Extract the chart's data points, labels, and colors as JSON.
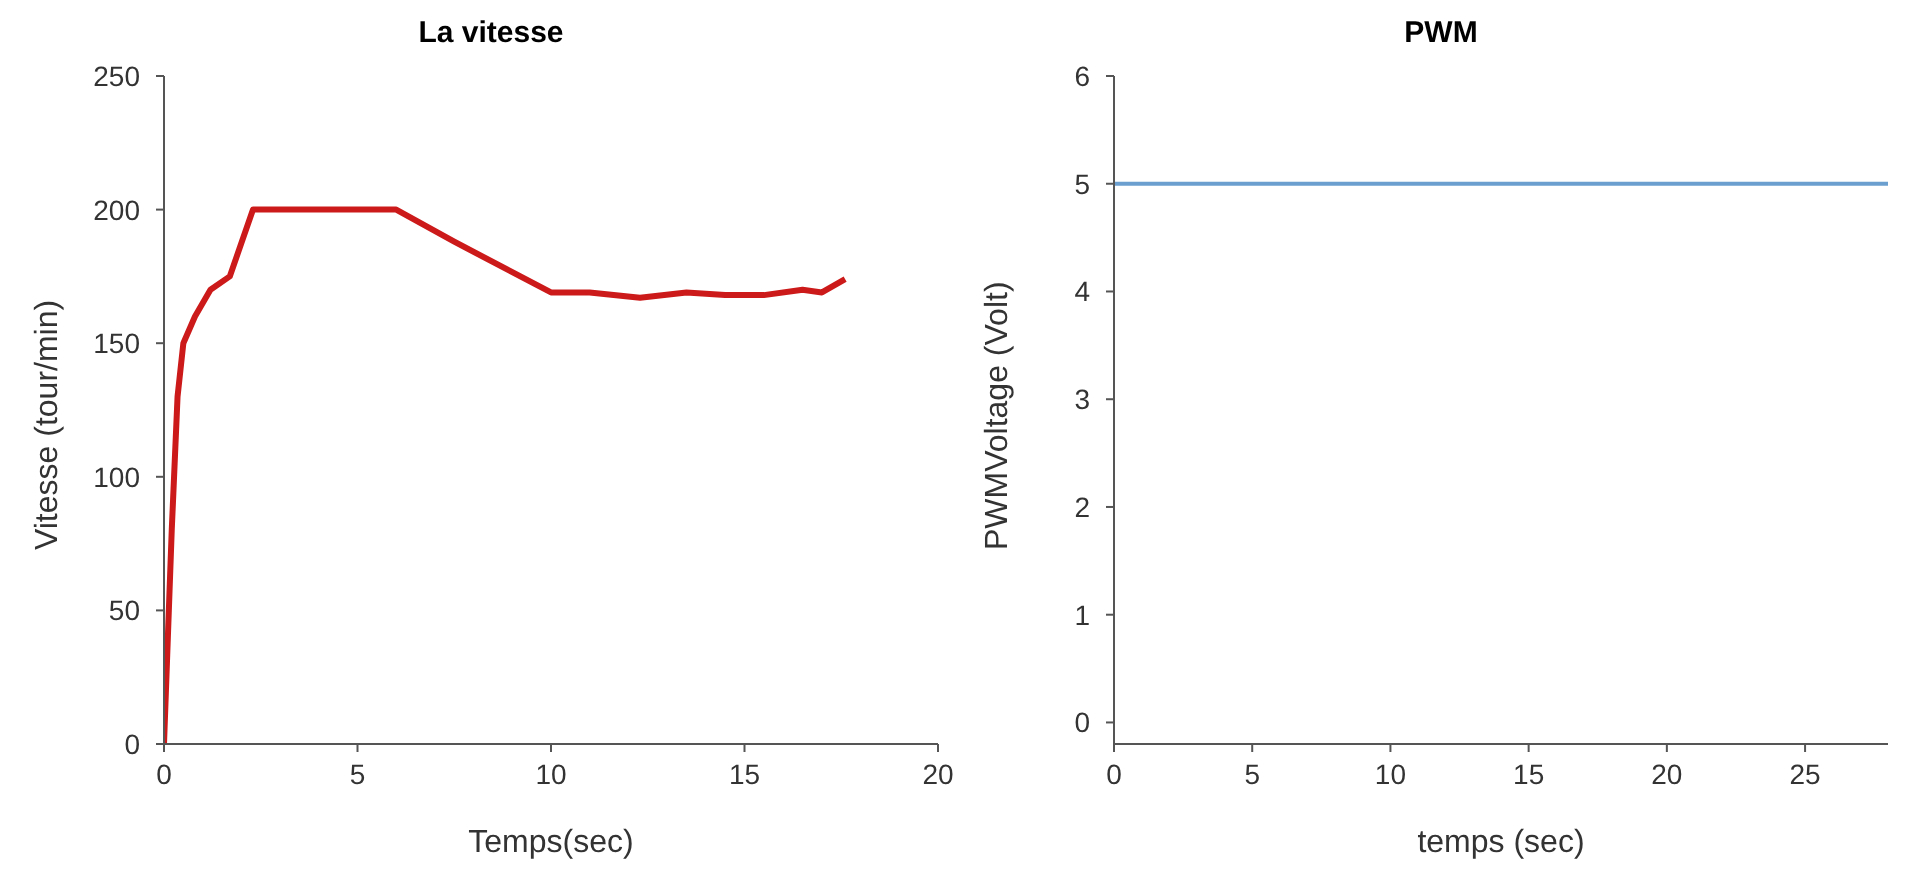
{
  "chart_data": [
    {
      "type": "line",
      "title": "La vitesse",
      "xlabel": "Temps(sec)",
      "ylabel": "Vitesse (tour/min)",
      "xlim": [
        0,
        20
      ],
      "xticks": [
        0,
        5,
        10,
        15,
        20
      ],
      "ylim": [
        0,
        250
      ],
      "yticks": [
        0,
        50,
        100,
        150,
        200,
        250
      ],
      "grid": false,
      "legend": false,
      "marker": "none",
      "line_style": "solid",
      "series": [
        {
          "color": "#cc1a1a",
          "x": [
            0,
            0.1,
            0.2,
            0.35,
            0.5,
            0.8,
            1.2,
            1.7,
            2.3,
            6,
            7.5,
            10,
            11,
            12.3,
            13.5,
            14.5,
            15.5,
            16.5,
            17,
            17.6
          ],
          "values": [
            0,
            40,
            80,
            130,
            150,
            160,
            170,
            175,
            200,
            200,
            188,
            169,
            169,
            167,
            169,
            168,
            168,
            170,
            169,
            174
          ]
        }
      ]
    },
    {
      "type": "line",
      "title": "PWM",
      "xlabel": "temps (sec)",
      "ylabel": "PWMVoltage (Volt)",
      "xlim": [
        0,
        28
      ],
      "xticks": [
        0,
        5,
        10,
        15,
        20,
        25
      ],
      "ylim": [
        -0.2,
        6
      ],
      "yticks": [
        0,
        1,
        2,
        3,
        4,
        5,
        6
      ],
      "grid": false,
      "legend": false,
      "marker": "none",
      "line_style": "solid",
      "series": [
        {
          "color": "#6a9fcf",
          "x": [
            0,
            28
          ],
          "values": [
            5,
            5
          ]
        }
      ]
    }
  ]
}
